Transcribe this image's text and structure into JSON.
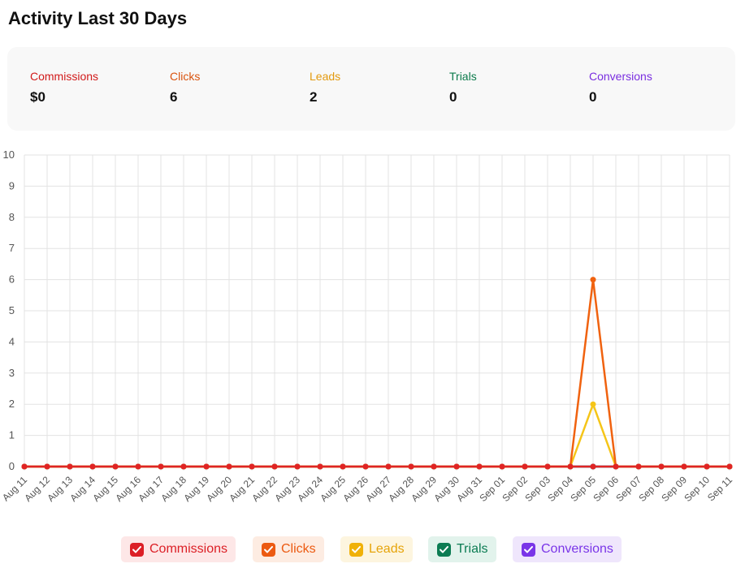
{
  "page": {
    "title": "Activity Last 30 Days"
  },
  "stats": [
    {
      "key": "commissions",
      "label": "Commissions",
      "value": "$0",
      "color": "#d11a1a"
    },
    {
      "key": "clicks",
      "label": "Clicks",
      "value": "6",
      "color": "#d9530e"
    },
    {
      "key": "leads",
      "label": "Leads",
      "value": "2",
      "color": "#e39a0e"
    },
    {
      "key": "trials",
      "label": "Trials",
      "value": "0",
      "color": "#0b7a4b"
    },
    {
      "key": "conversions",
      "label": "Conversions",
      "value": "0",
      "color": "#7a2ee0"
    }
  ],
  "legend": [
    {
      "label": "Commissions",
      "box_color": "#dc1f26",
      "bg": "#fde7e7",
      "text_color": "#dc1f26",
      "icon": "check-icon"
    },
    {
      "label": "Clicks",
      "box_color": "#ec5a11",
      "bg": "#fdece2",
      "text_color": "#ec5a11",
      "icon": "check-icon"
    },
    {
      "label": "Leads",
      "box_color": "#f0b108",
      "bg": "#fdf5df",
      "text_color": "#e6a40a",
      "icon": "check-icon"
    },
    {
      "label": "Trials",
      "box_color": "#0c7c53",
      "bg": "#e2f3ec",
      "text_color": "#0c7c53",
      "icon": "check-icon"
    },
    {
      "label": "Conversions",
      "box_color": "#7a35e8",
      "bg": "#efe6fc",
      "text_color": "#7a35e8",
      "icon": "check-icon"
    }
  ],
  "chart_data": {
    "type": "line",
    "title": "",
    "xlabel": "",
    "ylabel": "",
    "ylim": [
      0,
      10
    ],
    "yticks": [
      "0",
      "1",
      "2",
      "3",
      "4",
      "5",
      "6",
      "7",
      "8",
      "9",
      "10"
    ],
    "grid": true,
    "legend_position": "bottom",
    "categories": [
      "Aug 11",
      "Aug 12",
      "Aug 13",
      "Aug 14",
      "Aug 15",
      "Aug 16",
      "Aug 17",
      "Aug 18",
      "Aug 19",
      "Aug 20",
      "Aug 21",
      "Aug 22",
      "Aug 23",
      "Aug 24",
      "Aug 25",
      "Aug 26",
      "Aug 27",
      "Aug 28",
      "Aug 29",
      "Aug 30",
      "Aug 31",
      "Sep 01",
      "Sep 02",
      "Sep 03",
      "Sep 04",
      "Sep 05",
      "Sep 06",
      "Sep 07",
      "Sep 08",
      "Sep 09",
      "Sep 10",
      "Sep 11"
    ],
    "series": [
      {
        "name": "Commissions",
        "color": "#e02424",
        "values": [
          0,
          0,
          0,
          0,
          0,
          0,
          0,
          0,
          0,
          0,
          0,
          0,
          0,
          0,
          0,
          0,
          0,
          0,
          0,
          0,
          0,
          0,
          0,
          0,
          0,
          0,
          0,
          0,
          0,
          0,
          0,
          0
        ]
      },
      {
        "name": "Clicks",
        "color": "#f0620f",
        "values": [
          0,
          0,
          0,
          0,
          0,
          0,
          0,
          0,
          0,
          0,
          0,
          0,
          0,
          0,
          0,
          0,
          0,
          0,
          0,
          0,
          0,
          0,
          0,
          0,
          0,
          6,
          0,
          0,
          0,
          0,
          0,
          0
        ]
      },
      {
        "name": "Leads",
        "color": "#f5c518",
        "values": [
          0,
          0,
          0,
          0,
          0,
          0,
          0,
          0,
          0,
          0,
          0,
          0,
          0,
          0,
          0,
          0,
          0,
          0,
          0,
          0,
          0,
          0,
          0,
          0,
          0,
          2,
          0,
          0,
          0,
          0,
          0,
          0
        ]
      },
      {
        "name": "Trials",
        "color": "#0c8a5a",
        "values": [
          0,
          0,
          0,
          0,
          0,
          0,
          0,
          0,
          0,
          0,
          0,
          0,
          0,
          0,
          0,
          0,
          0,
          0,
          0,
          0,
          0,
          0,
          0,
          0,
          0,
          0,
          0,
          0,
          0,
          0,
          0,
          0
        ]
      },
      {
        "name": "Conversions",
        "color": "#7a35e8",
        "values": [
          0,
          0,
          0,
          0,
          0,
          0,
          0,
          0,
          0,
          0,
          0,
          0,
          0,
          0,
          0,
          0,
          0,
          0,
          0,
          0,
          0,
          0,
          0,
          0,
          0,
          0,
          0,
          0,
          0,
          0,
          0,
          0
        ]
      }
    ]
  }
}
